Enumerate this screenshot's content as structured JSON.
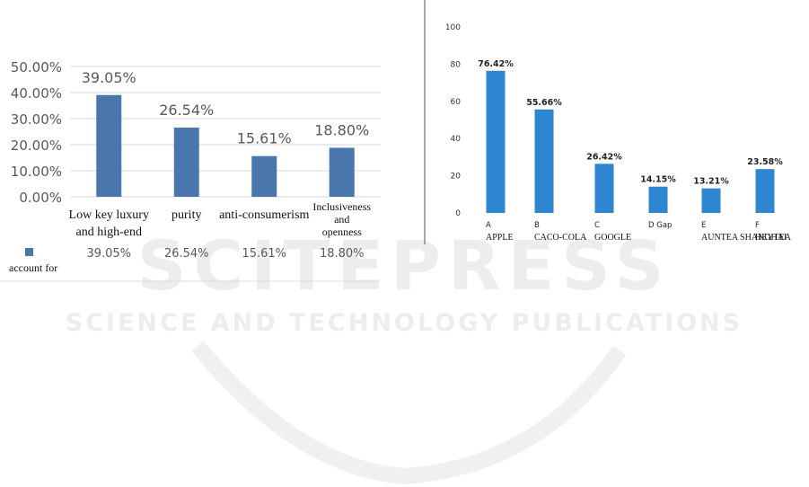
{
  "watermark": {
    "logo_text": "SCITEPRESS",
    "tagline": "SCIENCE AND TECHNOLOGY PUBLICATIONS"
  },
  "chart_data": [
    {
      "type": "bar",
      "categories": [
        "Low key luxury\nand high-end",
        "purity",
        "anti-consumerism",
        "Inclusiveness\nand\nopenness"
      ],
      "values": [
        39.05,
        26.54,
        15.61,
        18.8
      ],
      "data_labels": [
        "39.05%",
        "26.54%",
        "15.61%",
        "18.80%"
      ],
      "yticks": [
        "0.00%",
        "10.00%",
        "20.00%",
        "30.00%",
        "40.00%",
        "50.00%"
      ],
      "ylim": [
        0,
        50
      ],
      "grid": true,
      "color": "#4a76ae",
      "data_table": {
        "series_label": "account for",
        "values": [
          "39.05%",
          "26.54%",
          "15.61%",
          "18.80%"
        ]
      }
    },
    {
      "type": "bar",
      "categories": [
        "A\nAPPLE",
        "B\nCACO-COLA",
        "C\nGOOGLE",
        "D Gap",
        "E\nAUNTEA SHANGHAI",
        "F\nHEYTEA"
      ],
      "values": [
        76.42,
        55.66,
        26.42,
        14.15,
        13.21,
        23.58
      ],
      "data_labels": [
        "76.42%",
        "55.66%",
        "26.42%",
        "14.15%",
        "13.21%",
        "23.58%"
      ],
      "yticks": [
        "0",
        "20",
        "40",
        "60",
        "80",
        "100"
      ],
      "ylim": [
        0,
        100
      ],
      "grid": false,
      "color": "#2e86d0"
    }
  ]
}
